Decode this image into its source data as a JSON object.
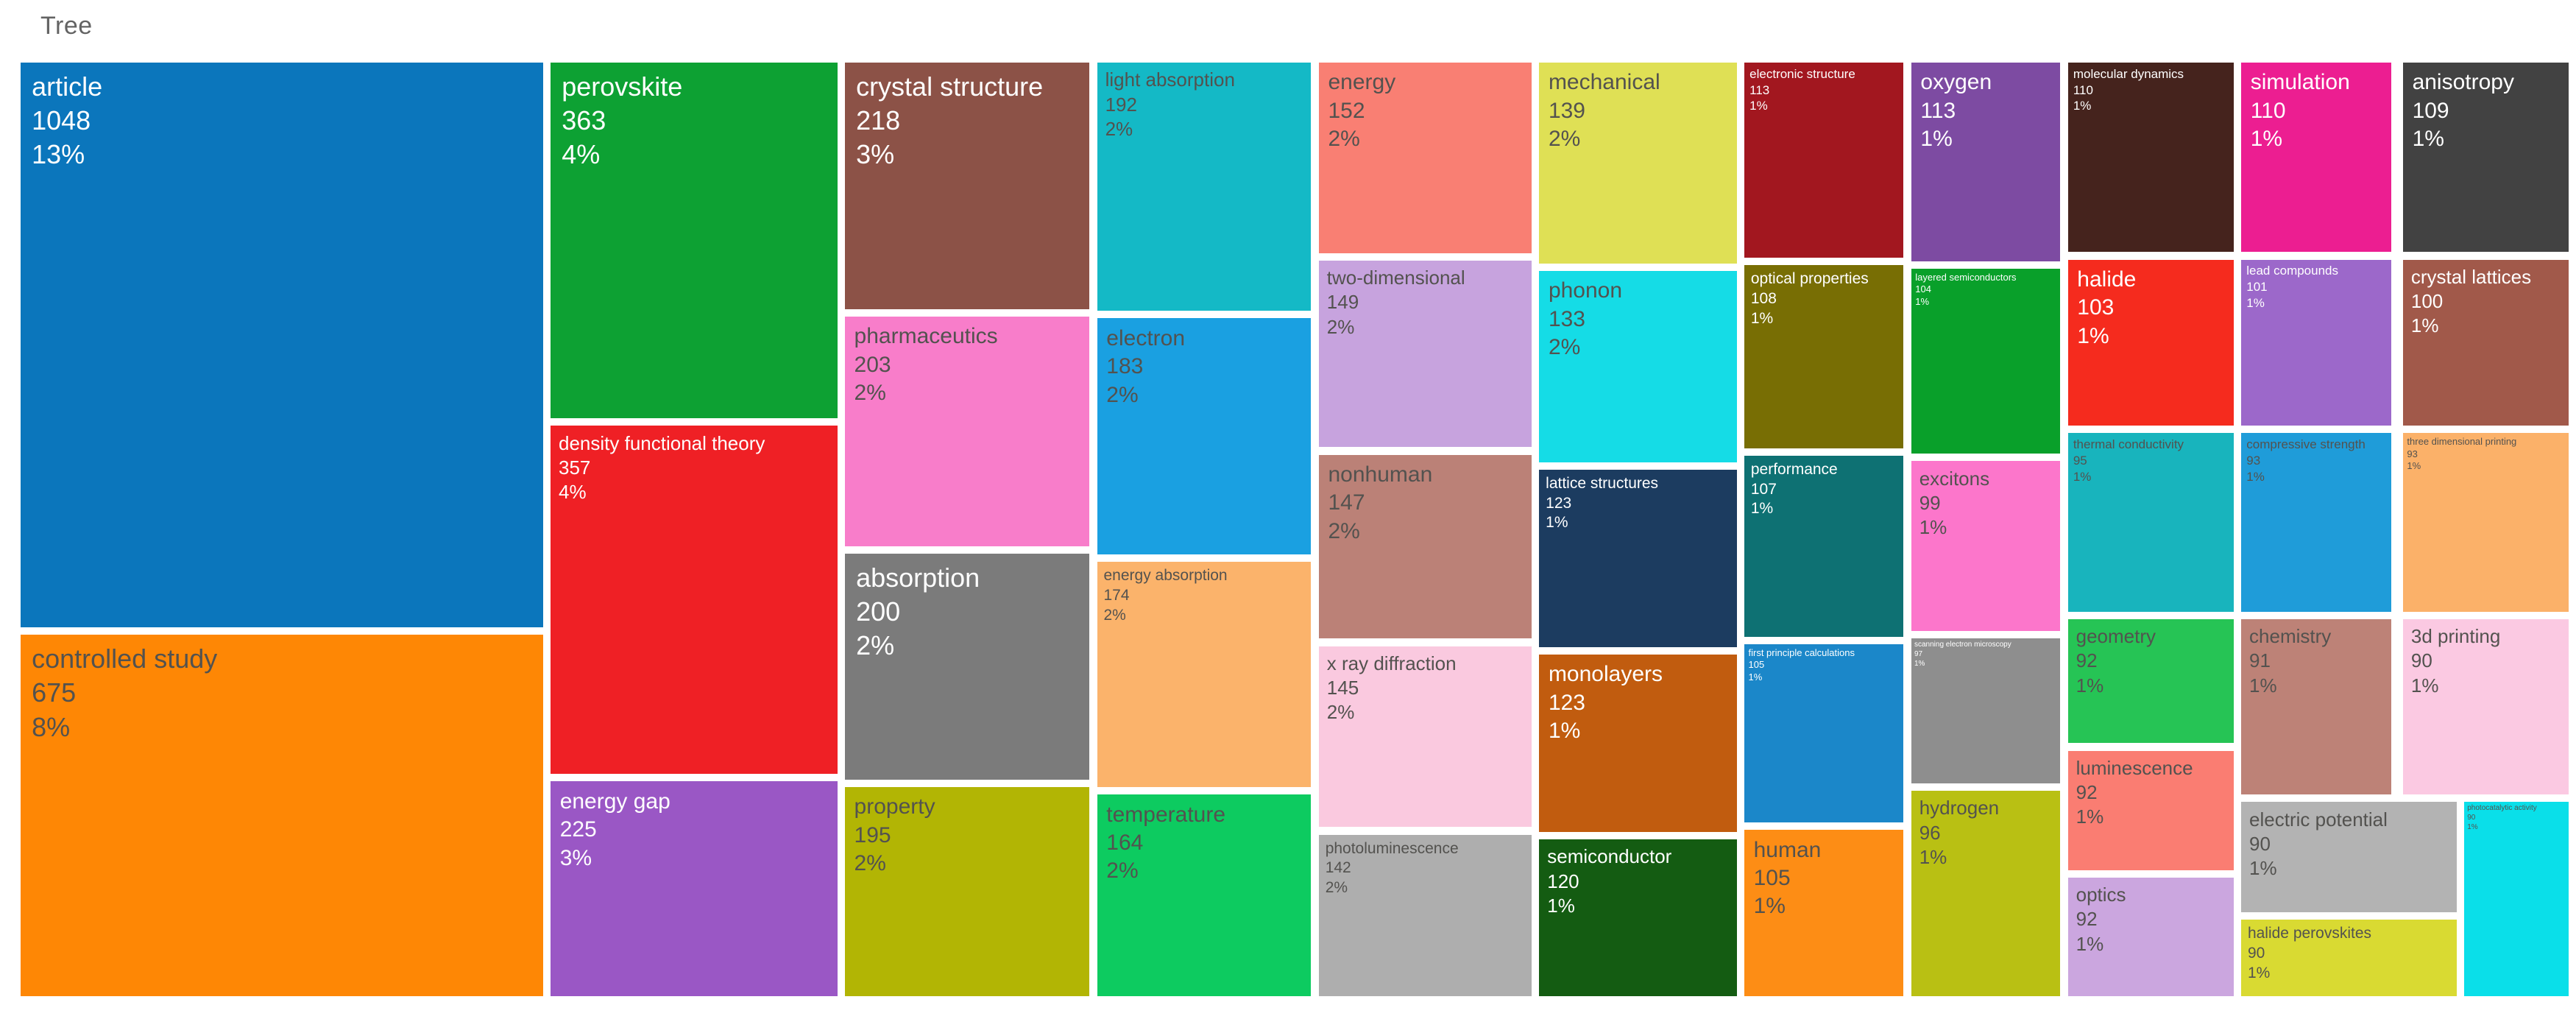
{
  "title": "Tree",
  "chart_data": {
    "type": "treemap",
    "title": "Tree",
    "legend": "none",
    "gap_color": "#ffffff",
    "cells": [
      {
        "label": "article",
        "value": 1048,
        "pct": "13%",
        "color": "#0b76bc",
        "text": "light",
        "size": "xl",
        "x": 0,
        "y": 0,
        "w": 20.5,
        "h": 60.5
      },
      {
        "label": "controlled study",
        "value": 675,
        "pct": "8%",
        "color": "#fe8705",
        "text": "dark",
        "size": "xl",
        "x": 0,
        "y": 61.3,
        "w": 20.5,
        "h": 38.7
      },
      {
        "label": "perovskite",
        "value": 363,
        "pct": "4%",
        "color": "#0da133",
        "text": "light",
        "size": "xl",
        "x": 20.8,
        "y": 0,
        "w": 11.25,
        "h": 38.1
      },
      {
        "label": "density functional theory",
        "value": 357,
        "pct": "4%",
        "color": "#ef2025",
        "text": "light",
        "size": "md",
        "x": 20.8,
        "y": 38.9,
        "w": 11.25,
        "h": 37.3
      },
      {
        "label": "energy gap",
        "value": 225,
        "pct": "3%",
        "color": "#9a57c5",
        "text": "light",
        "size": "lg",
        "x": 20.8,
        "y": 77.0,
        "w": 11.25,
        "h": 23.0
      },
      {
        "label": "crystal structure",
        "value": 218,
        "pct": "3%",
        "color": "#8c5247",
        "text": "light",
        "size": "xl",
        "x": 32.35,
        "y": 0,
        "w": 9.6,
        "h": 26.4
      },
      {
        "label": "pharmaceutics",
        "value": 203,
        "pct": "2%",
        "color": "#f87dca",
        "text": "dark",
        "size": "lg",
        "x": 32.35,
        "y": 27.2,
        "w": 9.6,
        "h": 24.6
      },
      {
        "label": "absorption",
        "value": 200,
        "pct": "2%",
        "color": "#7b7b7b",
        "text": "light",
        "size": "xl",
        "x": 32.35,
        "y": 52.6,
        "w": 9.6,
        "h": 24.2
      },
      {
        "label": "property",
        "value": 195,
        "pct": "2%",
        "color": "#b2b504",
        "text": "dark",
        "size": "lg",
        "x": 32.35,
        "y": 77.6,
        "w": 9.6,
        "h": 22.4
      },
      {
        "label": "light absorption",
        "value": 192,
        "pct": "2%",
        "color": "#14b9c6",
        "text": "dark",
        "size": "md",
        "x": 42.25,
        "y": 0,
        "w": 8.4,
        "h": 26.6
      },
      {
        "label": "electron",
        "value": 183,
        "pct": "2%",
        "color": "#1aa0e1",
        "text": "dark",
        "size": "lg",
        "x": 42.25,
        "y": 27.4,
        "w": 8.4,
        "h": 25.3
      },
      {
        "label": "energy absorption",
        "value": 174,
        "pct": "2%",
        "color": "#fbb36b",
        "text": "dark",
        "size": "sm",
        "x": 42.25,
        "y": 53.5,
        "w": 8.4,
        "h": 24.1
      },
      {
        "label": "temperature",
        "value": 164,
        "pct": "2%",
        "color": "#0dcb60",
        "text": "dark",
        "size": "lg",
        "x": 42.25,
        "y": 78.4,
        "w": 8.4,
        "h": 21.6
      },
      {
        "label": "energy",
        "value": 152,
        "pct": "2%",
        "color": "#f97f73",
        "text": "dark",
        "size": "lg",
        "x": 50.95,
        "y": 0,
        "w": 8.35,
        "h": 20.4
      },
      {
        "label": "two-dimensional",
        "value": 149,
        "pct": "2%",
        "color": "#c7a3de",
        "text": "dark",
        "size": "md",
        "x": 50.95,
        "y": 21.2,
        "w": 8.35,
        "h": 20.0
      },
      {
        "label": "nonhuman",
        "value": 147,
        "pct": "2%",
        "color": "#bb8177",
        "text": "dark",
        "size": "lg",
        "x": 50.95,
        "y": 42.0,
        "w": 8.35,
        "h": 19.7
      },
      {
        "label": "x ray diffraction",
        "value": 145,
        "pct": "2%",
        "color": "#fac9df",
        "text": "dark",
        "size": "md",
        "x": 50.95,
        "y": 62.5,
        "w": 8.35,
        "h": 19.4
      },
      {
        "label": "photoluminescence",
        "value": 142,
        "pct": "2%",
        "color": "#aeaeae",
        "text": "dark",
        "size": "sm",
        "x": 50.95,
        "y": 82.7,
        "w": 8.35,
        "h": 17.3
      },
      {
        "label": "mechanical",
        "value": 139,
        "pct": "2%",
        "color": "#dfe055",
        "text": "dark",
        "size": "lg",
        "x": 59.6,
        "y": 0,
        "w": 7.75,
        "h": 21.5
      },
      {
        "label": "phonon",
        "value": 133,
        "pct": "2%",
        "color": "#15dce6",
        "text": "dark",
        "size": "lg",
        "x": 59.6,
        "y": 22.3,
        "w": 7.75,
        "h": 20.5
      },
      {
        "label": "lattice structures",
        "value": 123,
        "pct": "1%",
        "color": "#1c3c60",
        "text": "light",
        "size": "sm",
        "x": 59.6,
        "y": 43.6,
        "w": 7.75,
        "h": 19.0
      },
      {
        "label": "monolayers",
        "value": 123,
        "pct": "1%",
        "color": "#c15c0f",
        "text": "light",
        "size": "lg",
        "x": 59.6,
        "y": 63.4,
        "w": 7.75,
        "h": 19.0
      },
      {
        "label": "semiconductor",
        "value": 120,
        "pct": "1%",
        "color": "#145c12",
        "text": "light",
        "size": "md",
        "x": 59.6,
        "y": 83.2,
        "w": 7.75,
        "h": 16.8
      },
      {
        "label": "electronic structure",
        "value": 113,
        "pct": "1%",
        "color": "#a2171f",
        "text": "light",
        "size": "xs",
        "x": 67.65,
        "y": 0,
        "w": 6.25,
        "h": 20.9
      },
      {
        "label": "optical properties",
        "value": 108,
        "pct": "1%",
        "color": "#786e04",
        "text": "light",
        "size": "sm",
        "x": 67.65,
        "y": 21.7,
        "w": 6.25,
        "h": 19.6
      },
      {
        "label": "performance",
        "value": 107,
        "pct": "1%",
        "color": "#0e7173",
        "text": "light",
        "size": "sm",
        "x": 67.65,
        "y": 42.1,
        "w": 6.25,
        "h": 19.4
      },
      {
        "label": "first principle calculations",
        "value": 105,
        "pct": "1%",
        "color": "#1b87c9",
        "text": "light",
        "size": "xxs",
        "x": 67.65,
        "y": 62.3,
        "w": 6.25,
        "h": 19.1
      },
      {
        "label": "human",
        "value": 105,
        "pct": "1%",
        "color": "#fd8d15",
        "text": "dark",
        "size": "lg",
        "x": 67.65,
        "y": 82.2,
        "w": 6.25,
        "h": 17.8
      },
      {
        "label": "oxygen",
        "value": 113,
        "pct": "1%",
        "color": "#7d4ba2",
        "text": "light",
        "size": "lg",
        "x": 74.2,
        "y": 0,
        "w": 5.85,
        "h": 21.3
      },
      {
        "label": "layered semiconductors",
        "value": 104,
        "pct": "1%",
        "color": "#09a02a",
        "text": "light",
        "size": "xxs",
        "x": 74.2,
        "y": 22.1,
        "w": 5.85,
        "h": 19.8
      },
      {
        "label": "excitons",
        "value": 99,
        "pct": "1%",
        "color": "#fc76cb",
        "text": "dark",
        "size": "md",
        "x": 74.2,
        "y": 42.7,
        "w": 5.85,
        "h": 18.2
      },
      {
        "label": "scanning electron microscopy",
        "value": 97,
        "pct": "1%",
        "color": "#8e8e8e",
        "text": "light",
        "size": "xxxs",
        "x": 74.2,
        "y": 61.7,
        "w": 5.85,
        "h": 15.5
      },
      {
        "label": "hydrogen",
        "value": 96,
        "pct": "1%",
        "color": "#b9c013",
        "text": "dark",
        "size": "md",
        "x": 74.2,
        "y": 78.0,
        "w": 5.85,
        "h": 22.0
      },
      {
        "label": "molecular dynamics",
        "value": 110,
        "pct": "1%",
        "color": "#45231d",
        "text": "light",
        "size": "xs",
        "x": 80.35,
        "y": 0,
        "w": 6.5,
        "h": 20.3
      },
      {
        "label": "halide",
        "value": 103,
        "pct": "1%",
        "color": "#f52b1e",
        "text": "light",
        "size": "lg",
        "x": 80.35,
        "y": 21.1,
        "w": 6.5,
        "h": 17.8
      },
      {
        "label": "thermal conductivity",
        "value": 95,
        "pct": "1%",
        "color": "#18b4bd",
        "text": "dark",
        "size": "xs",
        "x": 80.35,
        "y": 39.7,
        "w": 6.5,
        "h": 19.1
      },
      {
        "label": "geometry",
        "value": 92,
        "pct": "1%",
        "color": "#26c455",
        "text": "dark",
        "size": "md",
        "x": 80.35,
        "y": 59.6,
        "w": 6.5,
        "h": 13.3
      },
      {
        "label": "luminescence",
        "value": 92,
        "pct": "1%",
        "color": "#fa7d72",
        "text": "dark",
        "size": "md",
        "x": 80.35,
        "y": 73.7,
        "w": 6.5,
        "h": 12.8
      },
      {
        "label": "optics",
        "value": 92,
        "pct": "1%",
        "color": "#cba6df",
        "text": "dark",
        "size": "md",
        "x": 80.35,
        "y": 87.3,
        "w": 6.5,
        "h": 12.7
      },
      {
        "label": "simulation",
        "value": 110,
        "pct": "1%",
        "color": "#ec1e91",
        "text": "light",
        "size": "lg",
        "x": 87.15,
        "y": 0,
        "w": 5.9,
        "h": 20.3
      },
      {
        "label": "lead compounds",
        "value": 101,
        "pct": "1%",
        "color": "#9c68ca",
        "text": "light",
        "size": "xs",
        "x": 87.15,
        "y": 21.1,
        "w": 5.9,
        "h": 17.8
      },
      {
        "label": "compressive strength",
        "value": 93,
        "pct": "1%",
        "color": "#1f9cd9",
        "text": "dark",
        "size": "xs",
        "x": 87.15,
        "y": 39.7,
        "w": 5.9,
        "h": 19.1
      },
      {
        "label": "chemistry",
        "value": 91,
        "pct": "1%",
        "color": "#bd8277",
        "text": "dark",
        "size": "md",
        "x": 87.15,
        "y": 59.6,
        "w": 5.9,
        "h": 18.8
      },
      {
        "label": "electric potential",
        "value": 90,
        "pct": "1%",
        "color": "#b3b3b3",
        "text": "dark",
        "size": "md",
        "x": 87.15,
        "y": 79.2,
        "w": 8.45,
        "h": 11.8
      },
      {
        "label": "halide perovskites",
        "value": 90,
        "pct": "1%",
        "color": "#d9da32",
        "text": "dark",
        "size": "sm",
        "x": 87.15,
        "y": 91.8,
        "w": 8.45,
        "h": 8.2
      },
      {
        "label": "anisotropy",
        "value": 109,
        "pct": "1%",
        "color": "#424242",
        "text": "light",
        "size": "lg",
        "x": 93.5,
        "y": 0,
        "w": 6.5,
        "h": 20.3
      },
      {
        "label": "crystal lattices",
        "value": 100,
        "pct": "1%",
        "color": "#a1594a",
        "text": "light",
        "size": "md",
        "x": 93.5,
        "y": 21.1,
        "w": 6.5,
        "h": 17.8
      },
      {
        "label": "three dimensional printing",
        "value": 93,
        "pct": "1%",
        "color": "#fbb169",
        "text": "dark",
        "size": "xxs",
        "x": 93.5,
        "y": 39.7,
        "w": 6.5,
        "h": 19.1
      },
      {
        "label": "3d printing",
        "value": 90,
        "pct": "1%",
        "color": "#fbc9e2",
        "text": "dark",
        "size": "md",
        "x": 93.5,
        "y": 59.6,
        "w": 6.5,
        "h": 18.8
      },
      {
        "label": "photocatalytic activity",
        "value": 90,
        "pct": "1%",
        "color": "#0adfe9",
        "text": "dark",
        "size": "xxxs",
        "x": 95.9,
        "y": 79.2,
        "w": 4.1,
        "h": 20.8
      }
    ]
  }
}
